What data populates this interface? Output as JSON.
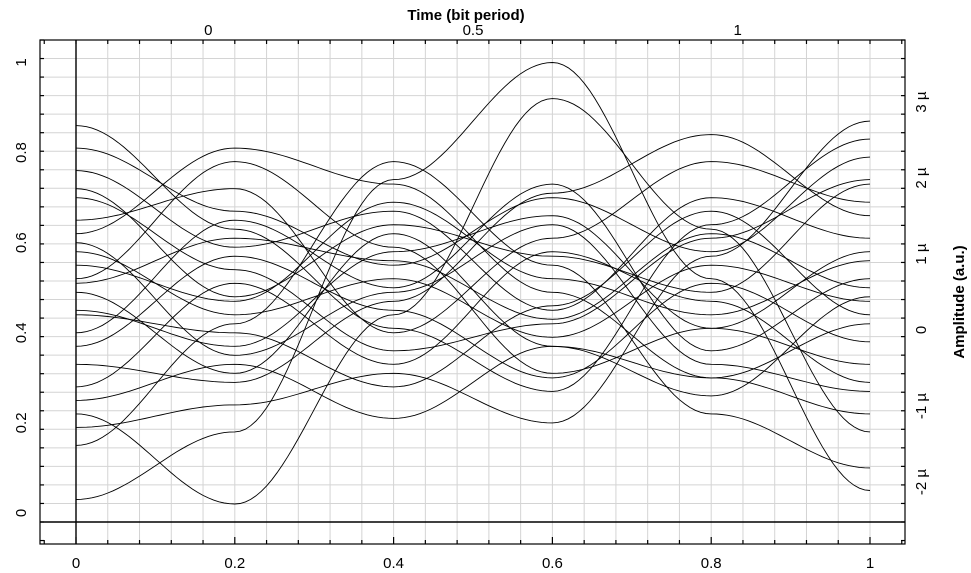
{
  "chart_data": {
    "type": "line",
    "title": "",
    "grid": true,
    "x_bottom": {
      "label": "",
      "range": [
        0,
        1
      ],
      "ticks": [
        0,
        0.2,
        0.4,
        0.6,
        0.8,
        1
      ],
      "tick_labels": [
        "0",
        "0.2",
        "0.4",
        "0.6",
        "0.8",
        "1"
      ]
    },
    "x_top": {
      "label": "Time (bit period)",
      "range": [
        -0.25,
        1.25
      ],
      "ticks": [
        0,
        0.5,
        1
      ],
      "tick_labels": [
        "0",
        "0.5",
        "1"
      ]
    },
    "y_left": {
      "label": "",
      "range": [
        -0.02,
        1.05
      ],
      "ticks": [
        0,
        0.2,
        0.4,
        0.6,
        0.8,
        1
      ],
      "tick_labels": [
        "0",
        "0.2",
        "0.4",
        "0.6",
        "0.8",
        "1"
      ]
    },
    "y_right": {
      "label": "Amplitude (a.u.)",
      "ticks": [
        -2e-06,
        -1e-06,
        0,
        1e-06,
        2e-06,
        3e-06
      ],
      "tick_labels": [
        "-2 µ",
        "-1 µ",
        "0",
        "1 µ",
        "2 µ",
        "3 µ"
      ]
    },
    "series_style": {
      "color": "#000000"
    },
    "series_note": "eye-diagram traces",
    "series": [
      {
        "x": [
          0,
          0.2,
          0.4,
          0.6,
          0.8,
          1
        ],
        "y": [
          0.03,
          0.18,
          0.74,
          1.0,
          0.52,
          0.05
        ]
      },
      {
        "x": [
          0,
          0.2,
          0.4,
          0.6,
          0.8,
          1
        ],
        "y": [
          0.22,
          0.02,
          0.44,
          0.92,
          0.63,
          0.18
        ]
      },
      {
        "x": [
          0,
          0.2,
          0.4,
          0.6,
          0.8,
          1
        ],
        "y": [
          0.52,
          0.78,
          0.59,
          0.31,
          0.41,
          0.58
        ]
      },
      {
        "x": [
          0,
          0.2,
          0.4,
          0.6,
          0.8,
          1
        ],
        "y": [
          0.86,
          0.63,
          0.41,
          0.27,
          0.64,
          0.83
        ]
      },
      {
        "x": [
          0,
          0.2,
          0.4,
          0.6,
          0.8,
          1
        ],
        "y": [
          0.45,
          0.37,
          0.58,
          0.66,
          0.41,
          0.33
        ]
      },
      {
        "x": [
          0,
          0.2,
          0.4,
          0.6,
          0.8,
          1
        ],
        "y": [
          0.62,
          0.81,
          0.73,
          0.49,
          0.3,
          0.42
        ]
      },
      {
        "x": [
          0,
          0.2,
          0.4,
          0.6,
          0.8,
          1
        ],
        "y": [
          0.33,
          0.29,
          0.47,
          0.71,
          0.84,
          0.66
        ]
      },
      {
        "x": [
          0,
          0.2,
          0.4,
          0.6,
          0.8,
          1
        ],
        "y": [
          0.7,
          0.54,
          0.36,
          0.42,
          0.61,
          0.74
        ]
      },
      {
        "x": [
          0,
          0.2,
          0.4,
          0.6,
          0.8,
          1
        ],
        "y": [
          0.15,
          0.42,
          0.78,
          0.55,
          0.22,
          0.1
        ]
      },
      {
        "x": [
          0,
          0.2,
          0.4,
          0.6,
          0.8,
          1
        ],
        "y": [
          0.58,
          0.44,
          0.52,
          0.39,
          0.55,
          0.47
        ]
      },
      {
        "x": [
          0,
          0.2,
          0.4,
          0.6,
          0.8,
          1
        ],
        "y": [
          0.4,
          0.65,
          0.5,
          0.73,
          0.36,
          0.52
        ]
      },
      {
        "x": [
          0,
          0.2,
          0.4,
          0.6,
          0.8,
          1
        ],
        "y": [
          0.76,
          0.59,
          0.67,
          0.45,
          0.7,
          0.61
        ]
      },
      {
        "x": [
          0,
          0.2,
          0.4,
          0.6,
          0.8,
          1
        ],
        "y": [
          0.28,
          0.51,
          0.33,
          0.58,
          0.47,
          0.29
        ]
      },
      {
        "x": [
          0,
          0.2,
          0.4,
          0.6,
          0.8,
          1
        ],
        "y": [
          0.49,
          0.31,
          0.62,
          0.37,
          0.26,
          0.48
        ]
      },
      {
        "x": [
          0,
          0.2,
          0.4,
          0.6,
          0.8,
          1
        ],
        "y": [
          0.65,
          0.72,
          0.4,
          0.61,
          0.78,
          0.69
        ]
      },
      {
        "x": [
          0,
          0.2,
          0.4,
          0.6,
          0.8,
          1
        ],
        "y": [
          0.19,
          0.24,
          0.31,
          0.2,
          0.57,
          0.87
        ]
      },
      {
        "x": [
          0,
          0.2,
          0.4,
          0.6,
          0.8,
          1
        ],
        "y": [
          0.55,
          0.47,
          0.69,
          0.52,
          0.44,
          0.56
        ]
      },
      {
        "x": [
          0,
          0.2,
          0.4,
          0.6,
          0.8,
          1
        ],
        "y": [
          0.37,
          0.57,
          0.45,
          0.3,
          0.51,
          0.38
        ]
      },
      {
        "x": [
          0,
          0.2,
          0.4,
          0.6,
          0.8,
          1
        ],
        "y": [
          0.81,
          0.67,
          0.55,
          0.7,
          0.58,
          0.79
        ]
      },
      {
        "x": [
          0,
          0.2,
          0.4,
          0.6,
          0.8,
          1
        ],
        "y": [
          0.44,
          0.4,
          0.28,
          0.46,
          0.67,
          0.44
        ]
      },
      {
        "x": [
          0,
          0.2,
          0.4,
          0.6,
          0.8,
          1
        ],
        "y": [
          0.6,
          0.35,
          0.49,
          0.64,
          0.33,
          0.27
        ]
      },
      {
        "x": [
          0,
          0.2,
          0.4,
          0.6,
          0.8,
          1
        ],
        "y": [
          0.25,
          0.33,
          0.21,
          0.37,
          0.3,
          0.22
        ]
      },
      {
        "x": [
          0,
          0.2,
          0.4,
          0.6,
          0.8,
          1
        ],
        "y": [
          0.51,
          0.61,
          0.56,
          0.43,
          0.62,
          0.5
        ]
      },
      {
        "x": [
          0,
          0.2,
          0.4,
          0.6,
          0.8,
          1
        ],
        "y": [
          0.72,
          0.48,
          0.64,
          0.57,
          0.49,
          0.73
        ]
      }
    ]
  }
}
